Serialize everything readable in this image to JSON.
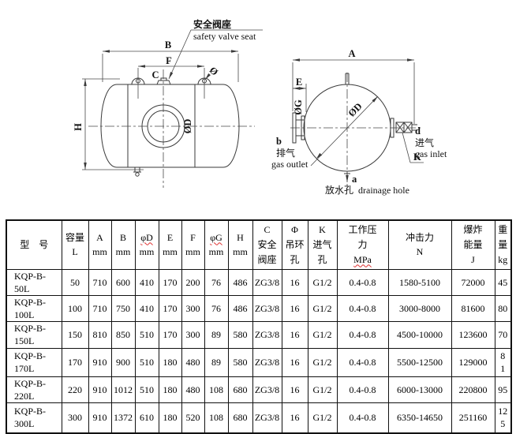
{
  "diagram_left": {
    "callout_cn": "安全阀座",
    "callout_en": "safety valve seat",
    "dim_B": "B",
    "dim_F": "F",
    "dim_C": "C",
    "lug_hole": "Ø",
    "dim_H": "H",
    "dim_OD": "ØD"
  },
  "diagram_right": {
    "dim_A": "A",
    "dim_E": "E",
    "dim_OG": "ØG",
    "dim_OD": "ØD",
    "outlet_point": "b",
    "outlet_cn": "排气",
    "outlet_en": "gas outlet",
    "inlet_point": "d",
    "inlet_cn": "进气",
    "inlet_en": "gas inlet",
    "inlet_dim": "K",
    "drain_point": "a",
    "drain_cn": "放水孔",
    "drain_en": "drainage hole"
  },
  "table": {
    "columns": [
      {
        "lines": [
          "型　号"
        ]
      },
      {
        "lines": [
          "容量",
          "L"
        ]
      },
      {
        "lines": [
          "A",
          "mm"
        ]
      },
      {
        "lines": [
          "B",
          "mm"
        ]
      },
      {
        "lines": [
          "φD",
          "mm"
        ],
        "squiggle": 0
      },
      {
        "lines": [
          "E",
          "mm"
        ]
      },
      {
        "lines": [
          "F",
          "mm"
        ]
      },
      {
        "lines": [
          "φG",
          "mm"
        ],
        "squiggle": 0
      },
      {
        "lines": [
          "H",
          "mm"
        ]
      },
      {
        "lines": [
          "C",
          "安全",
          "阀座"
        ]
      },
      {
        "lines": [
          "Φ",
          "吊环",
          "孔"
        ]
      },
      {
        "lines": [
          "K",
          "进气",
          "孔"
        ]
      },
      {
        "lines": [
          "工作压",
          "力",
          "MPa"
        ],
        "squiggle": 2
      },
      {
        "lines": [
          "冲击力",
          "N"
        ]
      },
      {
        "lines": [
          "爆炸",
          "能量",
          "J"
        ]
      },
      {
        "lines": [
          "重",
          "量",
          "kg"
        ]
      }
    ],
    "rows": [
      [
        "KQP-B-50L",
        "50",
        "710",
        "600",
        "410",
        "170",
        "200",
        "76",
        "486",
        "ZG3/8",
        "16",
        "G1/2",
        "0.4-0.8",
        "1580-5100",
        "72000",
        "45"
      ],
      [
        "KQP-B-100L",
        "100",
        "710",
        "750",
        "410",
        "170",
        "300",
        "76",
        "486",
        "ZG3/8",
        "16",
        "G1/2",
        "0.4-0.8",
        "3000-8000",
        "81600",
        "80"
      ],
      [
        "KQP-B-150L",
        "150",
        "810",
        "850",
        "510",
        "170",
        "300",
        "89",
        "580",
        "ZG3/8",
        "16",
        "G1/2",
        "0.4-0.8",
        "4500-10000",
        "123600",
        "70"
      ],
      [
        "KQP-B-170L",
        "170",
        "910",
        "900",
        "510",
        "180",
        "480",
        "89",
        "580",
        "ZG3/8",
        "16",
        "G1/2",
        "0.4-0.8",
        "5500-12500",
        "129000",
        "8\n1"
      ],
      [
        "KQP-B-220L",
        "220",
        "910",
        "1012",
        "510",
        "180",
        "480",
        "108",
        "680",
        "ZG3/8",
        "16",
        "G1/2",
        "0.4-0.8",
        "6000-13000",
        "220800",
        "95"
      ],
      [
        "KQP-B-300L",
        "300",
        "910",
        "1372",
        "610",
        "180",
        "520",
        "108",
        "680",
        "ZG3/8",
        "16",
        "G1/2",
        "0.4-0.8",
        "6350-14650",
        "251160",
        "12\n5"
      ]
    ]
  }
}
